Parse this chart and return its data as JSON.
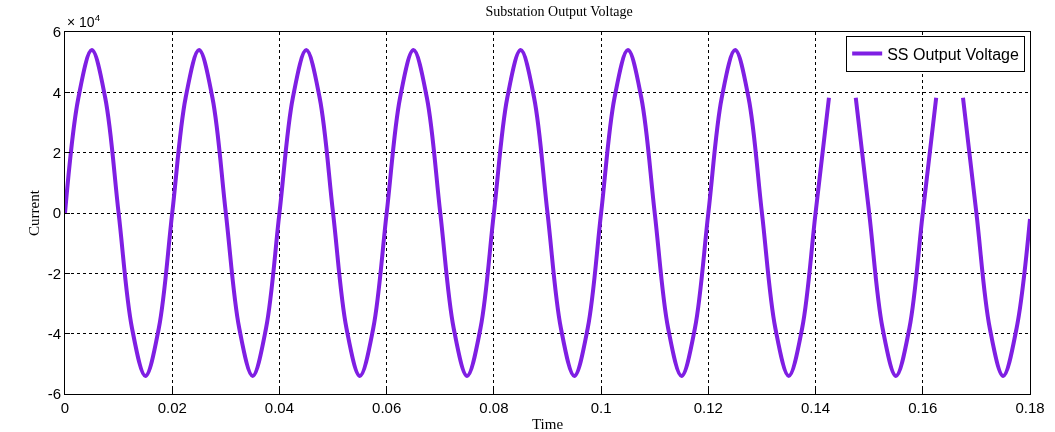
{
  "chart_data": {
    "type": "line",
    "title": "Substation Output Voltage",
    "xlabel": "Time",
    "ylabel": "Current",
    "annotations": [
      "× 10$^{4}$"
    ],
    "x": [
      0,
      0.0025,
      0.005,
      0.0075,
      0.01,
      0.0125,
      0.015,
      0.0175,
      0.02,
      0.0225,
      0.025,
      0.0275,
      0.03,
      0.0325,
      0.035,
      0.0375,
      0.04,
      0.0425,
      0.045,
      0.0475,
      0.05,
      0.0525,
      0.055,
      0.0575,
      0.06,
      0.0625,
      0.065,
      0.0675,
      0.07,
      0.0725,
      0.075,
      0.0775,
      0.08,
      0.0825,
      0.085,
      0.0875,
      0.09,
      0.0925,
      0.095,
      0.0975,
      0.1,
      0.1025,
      0.105,
      0.1075,
      0.11,
      0.1125,
      0.115,
      0.1175,
      0.12,
      0.1225,
      0.125,
      0.1275,
      0.13,
      0.1325,
      0.135,
      0.1375,
      0.14,
      0.1425,
      0.145,
      0.1475,
      0.15,
      0.1525,
      0.155,
      0.1575,
      0.16,
      0.1625,
      0.165,
      0.1675,
      0.17,
      0.1725,
      0.175,
      0.1775,
      0.18
    ],
    "series": [
      {
        "name": "SS Output Voltage",
        "color": "#7f1fe3",
        "values": [
          0,
          3.82,
          5.4,
          3.82,
          0,
          -3.82,
          -5.4,
          -3.82,
          0,
          3.82,
          5.4,
          3.82,
          0,
          -3.82,
          -5.4,
          -3.82,
          0,
          3.82,
          5.4,
          3.82,
          0,
          -3.82,
          -5.4,
          -3.82,
          0,
          3.82,
          5.4,
          3.82,
          0,
          -3.82,
          -5.4,
          -3.82,
          0,
          3.82,
          5.4,
          3.82,
          0,
          -3.82,
          -5.4,
          -3.82,
          0,
          3.82,
          5.4,
          3.82,
          0,
          -3.82,
          -5.4,
          -3.82,
          0,
          3.82,
          5.4,
          3.82,
          0,
          -3.82,
          -5.4,
          -3.82,
          0,
          3.82,
          null,
          3.82,
          0,
          -3.82,
          -5.4,
          -3.82,
          0,
          3.82,
          null,
          3.82,
          0,
          -3.82,
          -5.4,
          -3.82,
          -0.2
        ]
      }
    ],
    "xlim": [
      0,
      0.18
    ],
    "xticks": [
      0,
      0.02,
      0.04,
      0.06,
      0.08,
      0.1,
      0.12,
      0.14,
      0.16,
      0.18
    ],
    "ylim": [
      -6,
      6
    ],
    "yticks": [
      -6,
      -4,
      -2,
      0,
      2,
      4,
      6
    ],
    "grid": true,
    "legend": "top right",
    "line_style": "solid",
    "marker": "none"
  }
}
